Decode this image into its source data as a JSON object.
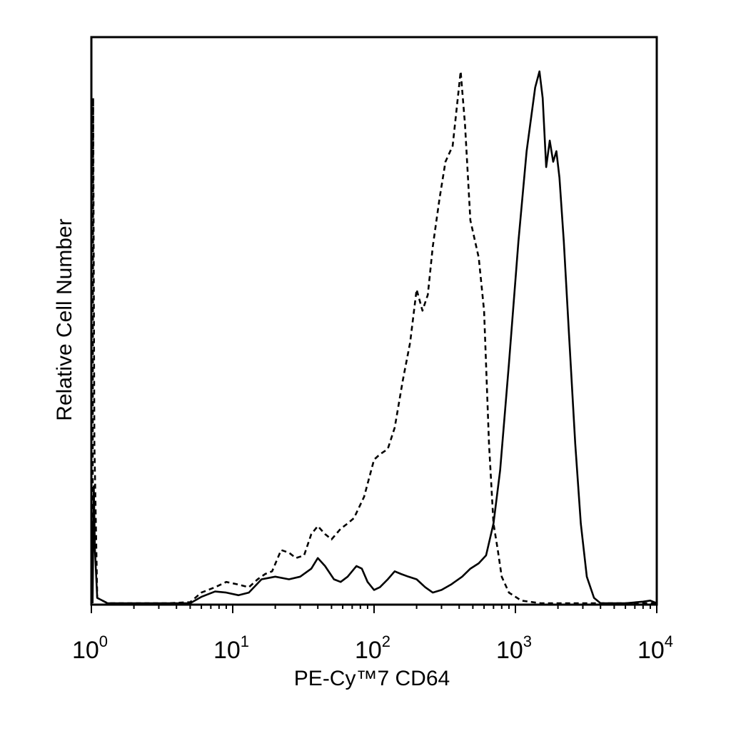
{
  "chart_data": {
    "type": "line",
    "title": "",
    "xlabel": "PE-Cy™7 CD64",
    "ylabel": "Relative Cell Number",
    "x_scale": "log",
    "xlim": [
      1,
      10000
    ],
    "ylim": [
      0,
      1
    ],
    "grid": false,
    "legend": "none",
    "x_ticks": [
      {
        "base": "10",
        "exp": "0",
        "value": 1
      },
      {
        "base": "10",
        "exp": "1",
        "value": 10
      },
      {
        "base": "10",
        "exp": "2",
        "value": 100
      },
      {
        "base": "10",
        "exp": "3",
        "value": 1000
      },
      {
        "base": "10",
        "exp": "4",
        "value": 10000
      }
    ],
    "series": [
      {
        "style": "dashed",
        "color": "#000000",
        "points": [
          [
            1.02,
            0.0
          ],
          [
            1.03,
            0.95
          ],
          [
            1.05,
            0.3
          ],
          [
            1.1,
            0.01
          ],
          [
            1.3,
            0.0
          ],
          [
            2,
            0.0
          ],
          [
            3.5,
            0.0
          ],
          [
            5,
            0.002
          ],
          [
            6,
            0.02
          ],
          [
            7.5,
            0.03
          ],
          [
            9,
            0.04
          ],
          [
            11,
            0.035
          ],
          [
            13,
            0.03
          ],
          [
            15,
            0.045
          ],
          [
            17,
            0.055
          ],
          [
            19,
            0.06
          ],
          [
            22,
            0.1
          ],
          [
            25,
            0.095
          ],
          [
            28,
            0.085
          ],
          [
            32,
            0.09
          ],
          [
            36,
            0.13
          ],
          [
            40,
            0.145
          ],
          [
            45,
            0.13
          ],
          [
            50,
            0.12
          ],
          [
            58,
            0.14
          ],
          [
            65,
            0.15
          ],
          [
            72,
            0.16
          ],
          [
            85,
            0.2
          ],
          [
            100,
            0.27
          ],
          [
            110,
            0.28
          ],
          [
            125,
            0.29
          ],
          [
            140,
            0.33
          ],
          [
            160,
            0.42
          ],
          [
            180,
            0.49
          ],
          [
            200,
            0.59
          ],
          [
            220,
            0.55
          ],
          [
            240,
            0.58
          ],
          [
            260,
            0.67
          ],
          [
            290,
            0.76
          ],
          [
            320,
            0.83
          ],
          [
            360,
            0.86
          ],
          [
            410,
            1.0
          ],
          [
            440,
            0.9
          ],
          [
            480,
            0.72
          ],
          [
            550,
            0.65
          ],
          [
            600,
            0.55
          ],
          [
            650,
            0.3
          ],
          [
            700,
            0.15
          ],
          [
            750,
            0.1
          ],
          [
            800,
            0.05
          ],
          [
            900,
            0.02
          ],
          [
            1100,
            0.005
          ],
          [
            1500,
            0.0
          ],
          [
            3000,
            0.0
          ],
          [
            6000,
            0.0
          ],
          [
            10000,
            0.0
          ]
        ]
      },
      {
        "style": "solid",
        "color": "#000000",
        "points": [
          [
            1.02,
            0.0
          ],
          [
            1.04,
            0.22
          ],
          [
            1.06,
            0.1
          ],
          [
            1.1,
            0.01
          ],
          [
            1.3,
            0.0
          ],
          [
            3,
            0.0
          ],
          [
            5,
            0.0
          ],
          [
            6,
            0.012
          ],
          [
            7.5,
            0.022
          ],
          [
            9,
            0.02
          ],
          [
            11,
            0.015
          ],
          [
            13,
            0.02
          ],
          [
            16,
            0.045
          ],
          [
            20,
            0.05
          ],
          [
            25,
            0.045
          ],
          [
            30,
            0.05
          ],
          [
            36,
            0.065
          ],
          [
            40,
            0.085
          ],
          [
            45,
            0.07
          ],
          [
            52,
            0.045
          ],
          [
            58,
            0.04
          ],
          [
            65,
            0.05
          ],
          [
            75,
            0.07
          ],
          [
            82,
            0.065
          ],
          [
            90,
            0.04
          ],
          [
            100,
            0.025
          ],
          [
            110,
            0.03
          ],
          [
            125,
            0.045
          ],
          [
            140,
            0.06
          ],
          [
            155,
            0.055
          ],
          [
            175,
            0.05
          ],
          [
            200,
            0.045
          ],
          [
            230,
            0.03
          ],
          [
            260,
            0.02
          ],
          [
            300,
            0.025
          ],
          [
            350,
            0.035
          ],
          [
            420,
            0.05
          ],
          [
            480,
            0.065
          ],
          [
            550,
            0.075
          ],
          [
            620,
            0.09
          ],
          [
            700,
            0.15
          ],
          [
            780,
            0.25
          ],
          [
            900,
            0.45
          ],
          [
            1050,
            0.68
          ],
          [
            1200,
            0.85
          ],
          [
            1380,
            0.97
          ],
          [
            1480,
            1.0
          ],
          [
            1560,
            0.95
          ],
          [
            1650,
            0.82
          ],
          [
            1750,
            0.87
          ],
          [
            1850,
            0.83
          ],
          [
            1950,
            0.85
          ],
          [
            2050,
            0.8
          ],
          [
            2200,
            0.68
          ],
          [
            2400,
            0.5
          ],
          [
            2650,
            0.3
          ],
          [
            2900,
            0.15
          ],
          [
            3200,
            0.05
          ],
          [
            3600,
            0.01
          ],
          [
            4000,
            0.0
          ],
          [
            6000,
            0.0
          ],
          [
            8000,
            0.003
          ],
          [
            9000,
            0.005
          ],
          [
            10000,
            0.0
          ]
        ]
      }
    ]
  }
}
